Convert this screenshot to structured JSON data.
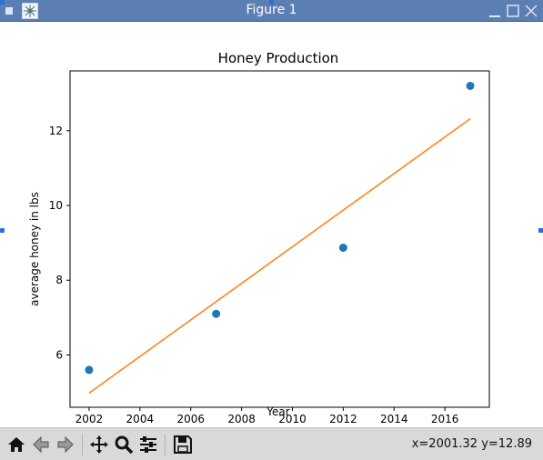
{
  "window": {
    "title": "Figure 1",
    "icon": "matplotlib-figure-icon"
  },
  "toolbar": {
    "buttons": [
      "home-icon",
      "back-arrow-icon",
      "forward-arrow-icon",
      "pan-move-icon",
      "zoom-magnifier-icon",
      "configure-subplots-icon",
      "save-floppy-icon"
    ],
    "coords_text": "x=2001.32 y=12.89"
  },
  "chart_data": {
    "type": "scatter",
    "title": "Honey Production",
    "xlabel": "Year",
    "ylabel": "average honey in lbs",
    "xlim": [
      2001.25,
      2017.75
    ],
    "ylim": [
      4.6,
      13.6
    ],
    "xticks": [
      2002,
      2004,
      2006,
      2008,
      2010,
      2012,
      2014,
      2016
    ],
    "yticks": [
      6,
      8,
      10,
      12
    ],
    "grid": false,
    "colors": {
      "points": "#1f77b4",
      "line": "#ff7f0e"
    },
    "series": [
      {
        "kind": "scatter",
        "x": [
          2002,
          2007,
          2012,
          2017
        ],
        "y": [
          5.6,
          7.1,
          8.87,
          13.2
        ]
      },
      {
        "kind": "line",
        "x": [
          2002,
          2017
        ],
        "y": [
          4.98,
          12.32
        ]
      }
    ]
  }
}
